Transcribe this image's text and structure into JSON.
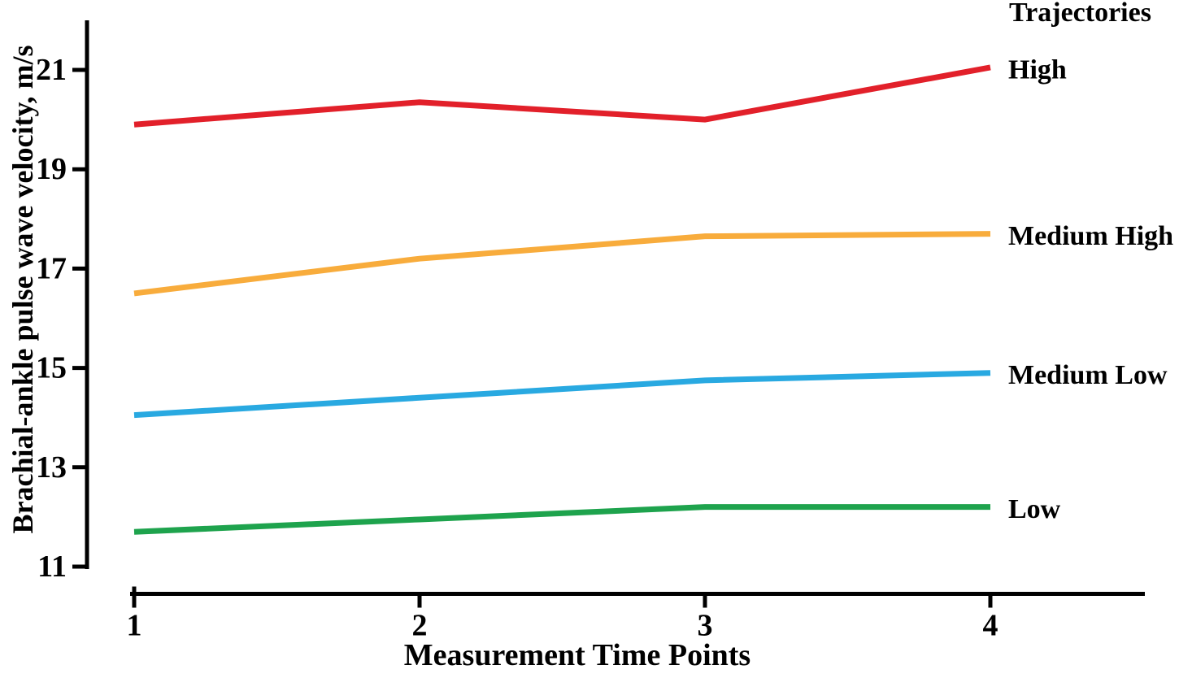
{
  "chart_data": {
    "type": "line",
    "xlabel": "Measurement Time Points",
    "ylabel": "Brachial-ankle pulse wave velocity, m/s",
    "legend_title": "Trajectories",
    "legend_position": "right of line ends, outside plot",
    "grid": false,
    "x": [
      1,
      2,
      3,
      4
    ],
    "x_tick_labels": [
      "1",
      "2",
      "3",
      "4"
    ],
    "y_tick_labels": [
      "11",
      "13",
      "15",
      "17",
      "19",
      "21"
    ],
    "y_tick_values": [
      11,
      13,
      15,
      17,
      19,
      21
    ],
    "ylim": [
      10.5,
      22
    ],
    "xlim": [
      1,
      4.55
    ],
    "series": [
      {
        "name": "High",
        "color": "#E2202A",
        "values": [
          19.9,
          20.35,
          20.0,
          21.05
        ]
      },
      {
        "name": "Medium High",
        "color": "#F8AC3C",
        "values": [
          16.5,
          17.2,
          17.65,
          17.7
        ]
      },
      {
        "name": "Medium Low",
        "color": "#29A9E1",
        "values": [
          14.05,
          14.4,
          14.75,
          14.9
        ]
      },
      {
        "name": "Low",
        "color": "#1EA34D",
        "values": [
          11.7,
          11.95,
          12.2,
          12.2
        ]
      }
    ],
    "axis_color": "#000000",
    "text_color": "#000000"
  }
}
